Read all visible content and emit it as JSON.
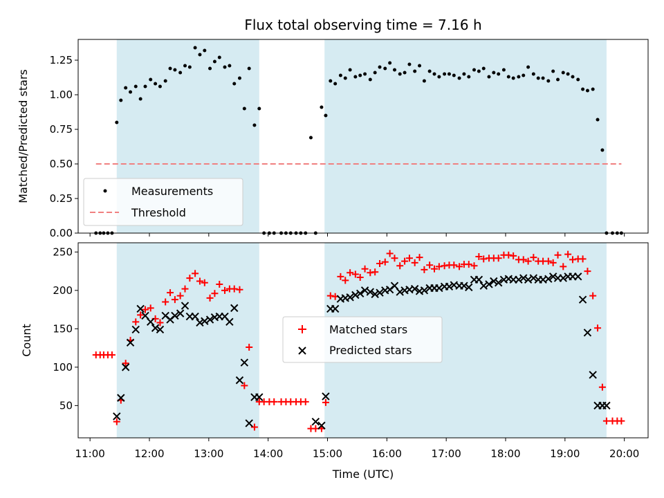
{
  "chart_data": [
    {
      "type": "scatter",
      "title": "Flux total observing time = 7.16 h",
      "ylabel": "Matched/Predicted stars",
      "xlabel": "",
      "xlim": [
        10.8,
        20.4
      ],
      "ylim": [
        0,
        1.4
      ],
      "yticks": [
        0.0,
        0.25,
        0.5,
        0.75,
        1.0,
        1.25
      ],
      "ytick_labels": [
        "0.00",
        "0.25",
        "0.50",
        "0.75",
        "1.00",
        "1.25"
      ],
      "shaded_intervals": [
        [
          11.45,
          13.85
        ],
        [
          14.95,
          19.7
        ]
      ],
      "legend": {
        "placement": "lower-left",
        "entries": [
          "Measurements",
          "Threshold"
        ]
      },
      "threshold": {
        "name": "Threshold",
        "value": 0.5,
        "x_range": [
          11.1,
          19.95
        ],
        "color": "#f08080"
      },
      "series": [
        {
          "name": "Measurements",
          "color": "#000000",
          "x": [
            11.1,
            11.17,
            11.23,
            11.3,
            11.37,
            11.45,
            11.52,
            11.6,
            11.68,
            11.77,
            11.85,
            11.93,
            12.02,
            12.1,
            12.18,
            12.27,
            12.35,
            12.43,
            12.52,
            12.6,
            12.68,
            12.77,
            12.85,
            12.93,
            13.02,
            13.1,
            13.18,
            13.27,
            13.35,
            13.43,
            13.52,
            13.6,
            13.68,
            13.77,
            13.85,
            13.93,
            14.02,
            14.1,
            14.22,
            14.3,
            14.38,
            14.47,
            14.55,
            14.63,
            14.72,
            14.8,
            14.9,
            14.97,
            15.05,
            15.13,
            15.22,
            15.3,
            15.38,
            15.47,
            15.55,
            15.63,
            15.72,
            15.8,
            15.88,
            15.97,
            16.05,
            16.13,
            16.22,
            16.3,
            16.38,
            16.47,
            16.55,
            16.63,
            16.72,
            16.8,
            16.88,
            16.97,
            17.05,
            17.13,
            17.22,
            17.3,
            17.38,
            17.47,
            17.55,
            17.63,
            17.72,
            17.8,
            17.88,
            17.97,
            18.05,
            18.13,
            18.22,
            18.3,
            18.38,
            18.47,
            18.55,
            18.63,
            18.72,
            18.8,
            18.88,
            18.97,
            19.05,
            19.13,
            19.22,
            19.3,
            19.38,
            19.47,
            19.55,
            19.63,
            19.7,
            19.8,
            19.88,
            19.95
          ],
          "y": [
            0,
            0,
            0,
            0,
            0,
            0.8,
            0.96,
            1.05,
            1.02,
            1.06,
            0.97,
            1.06,
            1.11,
            1.08,
            1.06,
            1.1,
            1.19,
            1.18,
            1.16,
            1.21,
            1.2,
            1.34,
            1.29,
            1.32,
            1.19,
            1.24,
            1.27,
            1.2,
            1.21,
            1.08,
            1.12,
            0.9,
            1.19,
            0.78,
            0.9,
            0,
            0,
            0,
            0,
            0,
            0,
            0,
            0,
            0,
            0.69,
            0,
            0.91,
            0.85,
            1.1,
            1.08,
            1.14,
            1.12,
            1.18,
            1.13,
            1.14,
            1.15,
            1.11,
            1.16,
            1.2,
            1.19,
            1.23,
            1.18,
            1.15,
            1.16,
            1.22,
            1.17,
            1.21,
            1.1,
            1.17,
            1.15,
            1.13,
            1.15,
            1.15,
            1.14,
            1.12,
            1.15,
            1.13,
            1.18,
            1.17,
            1.19,
            1.13,
            1.16,
            1.15,
            1.18,
            1.13,
            1.12,
            1.13,
            1.14,
            1.2,
            1.15,
            1.12,
            1.12,
            1.1,
            1.17,
            1.11,
            1.16,
            1.15,
            1.13,
            1.11,
            1.04,
            1.03,
            1.04,
            0.82,
            0.6,
            0,
            0,
            0,
            0
          ]
        }
      ]
    },
    {
      "type": "scatter",
      "title": "",
      "ylabel": "Count",
      "xlabel": "Time (UTC)",
      "xlim": [
        10.8,
        20.4
      ],
      "ylim": [
        8,
        262
      ],
      "yticks": [
        50,
        100,
        150,
        200,
        250
      ],
      "ytick_labels": [
        "50",
        "100",
        "150",
        "200",
        "250"
      ],
      "xticks": [
        11,
        12,
        13,
        14,
        15,
        16,
        17,
        18,
        19,
        20
      ],
      "xtick_labels": [
        "11:00",
        "12:00",
        "13:00",
        "14:00",
        "15:00",
        "16:00",
        "17:00",
        "18:00",
        "19:00",
        "20:00"
      ],
      "shaded_intervals": [
        [
          11.45,
          13.85
        ],
        [
          14.95,
          19.7
        ]
      ],
      "legend": {
        "placement": "center",
        "entries": [
          "Matched stars",
          "Predicted stars"
        ]
      },
      "series": [
        {
          "name": "Matched stars",
          "marker": "plus",
          "color": "#ff0000",
          "x": [
            11.1,
            11.17,
            11.23,
            11.3,
            11.37,
            11.45,
            11.52,
            11.6,
            11.68,
            11.77,
            11.85,
            11.93,
            12.02,
            12.1,
            12.18,
            12.27,
            12.35,
            12.43,
            12.52,
            12.6,
            12.68,
            12.77,
            12.85,
            12.93,
            13.02,
            13.1,
            13.18,
            13.27,
            13.35,
            13.43,
            13.52,
            13.6,
            13.68,
            13.77,
            13.85,
            13.93,
            14.02,
            14.1,
            14.22,
            14.3,
            14.38,
            14.47,
            14.55,
            14.63,
            14.72,
            14.8,
            14.9,
            14.97,
            15.05,
            15.13,
            15.22,
            15.3,
            15.38,
            15.47,
            15.55,
            15.63,
            15.72,
            15.8,
            15.88,
            15.97,
            16.05,
            16.13,
            16.22,
            16.3,
            16.38,
            16.47,
            16.55,
            16.63,
            16.72,
            16.8,
            16.88,
            16.97,
            17.05,
            17.13,
            17.22,
            17.3,
            17.38,
            17.47,
            17.55,
            17.63,
            17.72,
            17.8,
            17.88,
            17.97,
            18.05,
            18.13,
            18.22,
            18.3,
            18.38,
            18.47,
            18.55,
            18.63,
            18.72,
            18.8,
            18.88,
            18.97,
            19.05,
            19.13,
            19.22,
            19.3,
            19.38,
            19.47,
            19.55,
            19.63,
            19.7,
            19.8,
            19.88,
            19.95
          ],
          "y": [
            116,
            116,
            116,
            116,
            116,
            29,
            57,
            105,
            135,
            159,
            168,
            175,
            177,
            163,
            158,
            185,
            197,
            188,
            193,
            202,
            216,
            222,
            212,
            210,
            190,
            196,
            208,
            200,
            202,
            202,
            201,
            76,
            126,
            22,
            55,
            55,
            55,
            55,
            55,
            55,
            55,
            55,
            55,
            55,
            20,
            20,
            20,
            54,
            193,
            192,
            218,
            213,
            223,
            221,
            217,
            228,
            223,
            224,
            235,
            237,
            248,
            242,
            232,
            238,
            242,
            236,
            243,
            227,
            233,
            228,
            231,
            232,
            233,
            233,
            231,
            234,
            234,
            232,
            244,
            241,
            242,
            242,
            242,
            246,
            246,
            245,
            240,
            240,
            238,
            243,
            238,
            238,
            238,
            236,
            246,
            231,
            247,
            240,
            241,
            241,
            225,
            193,
            151,
            74,
            30,
            30,
            30,
            30
          ]
        },
        {
          "name": "Predicted stars",
          "marker": "x",
          "color": "#000000",
          "x": [
            11.45,
            11.52,
            11.6,
            11.68,
            11.77,
            11.85,
            11.93,
            12.02,
            12.1,
            12.18,
            12.27,
            12.35,
            12.43,
            12.52,
            12.6,
            12.68,
            12.77,
            12.85,
            12.93,
            13.02,
            13.1,
            13.18,
            13.27,
            13.35,
            13.43,
            13.52,
            13.6,
            13.68,
            13.77,
            13.85,
            14.8,
            14.9,
            14.97,
            15.05,
            15.13,
            15.22,
            15.3,
            15.38,
            15.47,
            15.55,
            15.63,
            15.72,
            15.8,
            15.88,
            15.97,
            16.05,
            16.13,
            16.22,
            16.3,
            16.38,
            16.47,
            16.55,
            16.63,
            16.72,
            16.8,
            16.88,
            16.97,
            17.05,
            17.13,
            17.22,
            17.3,
            17.38,
            17.47,
            17.55,
            17.63,
            17.72,
            17.8,
            17.88,
            17.97,
            18.05,
            18.13,
            18.22,
            18.3,
            18.38,
            18.47,
            18.55,
            18.63,
            18.72,
            18.8,
            18.88,
            18.97,
            19.05,
            19.13,
            19.22,
            19.3,
            19.38,
            19.47,
            19.55,
            19.63,
            19.7
          ],
          "y": [
            36,
            60,
            100,
            132,
            149,
            176,
            167,
            159,
            151,
            149,
            167,
            162,
            167,
            170,
            180,
            166,
            166,
            158,
            160,
            162,
            165,
            166,
            166,
            159,
            177,
            83,
            106,
            27,
            61,
            61,
            29,
            24,
            62,
            176,
            176,
            189,
            190,
            191,
            194,
            196,
            200,
            198,
            195,
            197,
            200,
            201,
            206,
            198,
            200,
            201,
            202,
            199,
            200,
            203,
            203,
            203,
            205,
            205,
            207,
            206,
            206,
            204,
            214,
            214,
            206,
            208,
            212,
            210,
            214,
            215,
            214,
            214,
            216,
            214,
            216,
            214,
            214,
            215,
            218,
            216,
            216,
            218,
            218,
            218,
            188,
            145,
            90,
            50,
            50,
            50
          ]
        }
      ]
    }
  ]
}
